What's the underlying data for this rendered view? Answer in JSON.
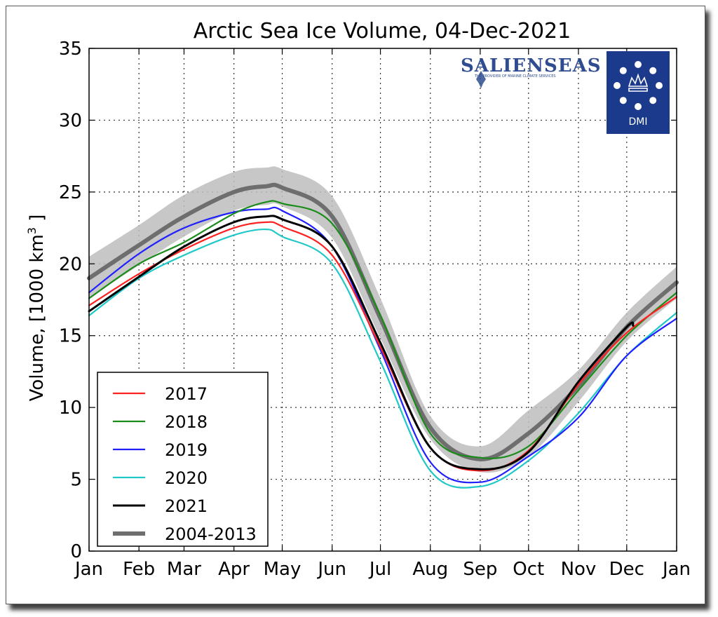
{
  "chart_data": {
    "type": "line",
    "title": "Arctic Sea Ice Volume, 04-Dec-2021",
    "xlabel": "",
    "ylabel": "Volume, [1000 km",
    "ylabel_sup": "3",
    "ylabel_end": " ]",
    "xlim": [
      0,
      365
    ],
    "ylim": [
      0,
      35
    ],
    "yticks": [
      0,
      5,
      10,
      15,
      20,
      25,
      30,
      35
    ],
    "x_ticks": [
      {
        "label": "Jan",
        "day": 0
      },
      {
        "label": "Feb",
        "day": 31
      },
      {
        "label": "Mar",
        "day": 59
      },
      {
        "label": "Apr",
        "day": 90
      },
      {
        "label": "May",
        "day": 120
      },
      {
        "label": "Jun",
        "day": 151
      },
      {
        "label": "Jul",
        "day": 181
      },
      {
        "label": "Aug",
        "day": 212
      },
      {
        "label": "Sep",
        "day": 243
      },
      {
        "label": "Oct",
        "day": 273
      },
      {
        "label": "Nov",
        "day": 304
      },
      {
        "label": "Dec",
        "day": 334
      },
      {
        "label": "Jan",
        "day": 365
      }
    ],
    "grid": true,
    "legend_position": "lower-left",
    "band": {
      "x": [
        0,
        31,
        59,
        90,
        110,
        120,
        151,
        181,
        212,
        243,
        273,
        304,
        334,
        365
      ],
      "low": [
        17.6,
        19.9,
        21.9,
        23.7,
        24.1,
        24.0,
        21.8,
        14.8,
        7.8,
        5.5,
        6.6,
        10.4,
        14.6,
        17.6
      ],
      "high": [
        20.5,
        22.7,
        24.8,
        26.4,
        26.7,
        26.6,
        24.7,
        17.6,
        9.4,
        7.3,
        9.8,
        12.6,
        16.6,
        19.8
      ]
    },
    "series": [
      {
        "name": "2017",
        "color": "#ff2020",
        "x": [
          0,
          31,
          59,
          90,
          110,
          120,
          151,
          181,
          212,
          243,
          273,
          304,
          334,
          365
        ],
        "y": [
          17.1,
          19.3,
          21.0,
          22.5,
          22.9,
          22.6,
          20.6,
          14.2,
          7.2,
          5.6,
          7.0,
          11.6,
          15.2,
          17.7
        ]
      },
      {
        "name": "2018",
        "color": "#1a8c1a",
        "x": [
          0,
          31,
          59,
          90,
          110,
          120,
          151,
          181,
          212,
          243,
          273,
          304,
          334,
          365
        ],
        "y": [
          17.6,
          20.0,
          21.5,
          23.5,
          24.3,
          24.2,
          22.8,
          16.4,
          8.2,
          6.5,
          7.3,
          11.2,
          15.0,
          18.0
        ]
      },
      {
        "name": "2019",
        "color": "#2020ff",
        "x": [
          0,
          31,
          59,
          90,
          110,
          120,
          151,
          181,
          212,
          243,
          273,
          304,
          334,
          365
        ],
        "y": [
          18.0,
          20.7,
          22.5,
          23.6,
          23.8,
          23.7,
          21.2,
          14.0,
          6.2,
          4.8,
          6.6,
          9.3,
          13.6,
          16.2
        ]
      },
      {
        "name": "2020",
        "color": "#20c8c8",
        "x": [
          0,
          31,
          59,
          90,
          110,
          120,
          151,
          181,
          212,
          243,
          273,
          304,
          334,
          365
        ],
        "y": [
          16.4,
          19.0,
          20.6,
          22.0,
          22.4,
          21.9,
          20.0,
          13.2,
          5.6,
          4.5,
          6.3,
          9.6,
          13.6,
          16.6
        ]
      },
      {
        "name": "2021",
        "color": "#000000",
        "x": [
          0,
          31,
          59,
          90,
          110,
          120,
          151,
          181,
          212,
          243,
          273,
          304,
          334,
          338
        ],
        "y": [
          16.7,
          19.1,
          21.2,
          22.9,
          23.3,
          23.1,
          21.2,
          14.5,
          7.2,
          5.7,
          6.9,
          11.8,
          15.6,
          15.7
        ]
      },
      {
        "name": "2004-2013",
        "color": "#6e6e6e",
        "x": [
          0,
          31,
          59,
          90,
          110,
          120,
          151,
          181,
          212,
          243,
          273,
          304,
          334,
          365
        ],
        "y": [
          19.0,
          21.3,
          23.3,
          25.0,
          25.4,
          25.3,
          23.3,
          16.2,
          8.6,
          6.4,
          8.2,
          11.5,
          15.6,
          18.7
        ]
      }
    ]
  },
  "logo": {
    "name": "SALIENSEAS",
    "tagline": "THE PROVIDER OF MARINE CLIMATE SERVICES",
    "badge": "DMI",
    "badge_color": "#1b3a8c"
  }
}
